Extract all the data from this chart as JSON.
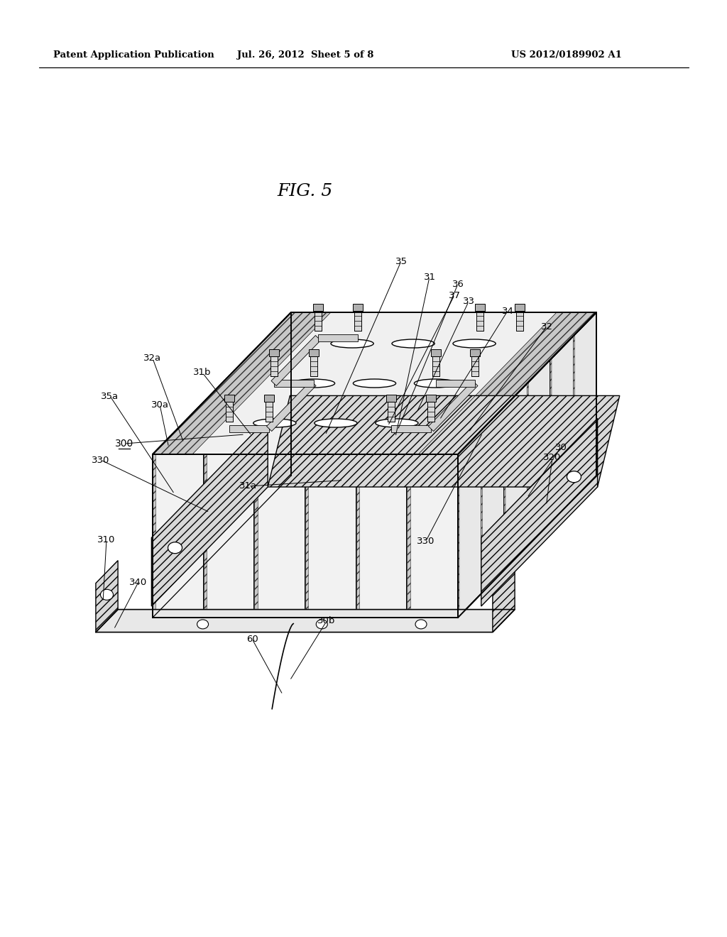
{
  "header_left": "Patent Application Publication",
  "header_center": "Jul. 26, 2012  Sheet 5 of 8",
  "header_right": "US 2012/0189902 A1",
  "fig_title": "FIG. 5",
  "bg_color": "#ffffff",
  "line_color": "#000000",
  "label_color": "#000000"
}
